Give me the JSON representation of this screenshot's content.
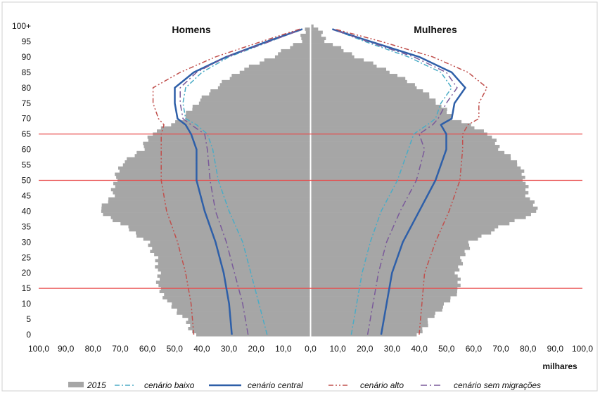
{
  "chart_data": {
    "type": "area",
    "y_tick_labels": [
      "0",
      "5",
      "10",
      "15",
      "20",
      "25",
      "30",
      "35",
      "40",
      "45",
      "50",
      "55",
      "60",
      "65",
      "70",
      "75",
      "80",
      "85",
      "90",
      "95",
      "100+"
    ],
    "x_tick_labels": [
      "100,0",
      "90,0",
      "80,0",
      "70,0",
      "60,0",
      "50,0",
      "40,0",
      "30,0",
      "20,0",
      "10,0",
      "0,0",
      "10,0",
      "20,0",
      "30,0",
      "40,0",
      "50,0",
      "60,0",
      "70,0",
      "80,0",
      "90,0",
      "100,0"
    ],
    "xlim": [
      0,
      100
    ],
    "ylim": [
      0,
      100
    ],
    "x_unit_label": "milhares",
    "panel_titles": {
      "left": "Homens",
      "right": "Mulheres"
    },
    "reference_lines_age": [
      15,
      50,
      65
    ],
    "colors": {
      "bars": "#a6a6a6",
      "baixo": "#4bacc6",
      "central": "#2e5fa8",
      "alto": "#c0504d",
      "sem": "#7a5a9a",
      "refline": "#e84a4a",
      "axis": "#ffffff"
    },
    "population_2015": {
      "ages": [
        0,
        5,
        10,
        15,
        20,
        25,
        30,
        35,
        40,
        45,
        50,
        55,
        60,
        65,
        70,
        75,
        80,
        85,
        90,
        95,
        100
      ],
      "male": [
        43,
        46,
        52,
        56,
        56,
        57,
        60,
        68,
        78,
        73,
        72,
        70,
        62,
        59,
        47,
        42,
        35,
        27,
        14,
        4,
        1
      ],
      "female": [
        40,
        44,
        50,
        55,
        54,
        56,
        59,
        70,
        84,
        80,
        79,
        77,
        70,
        66,
        53,
        47,
        40,
        30,
        17,
        6,
        2
      ]
    },
    "series": [
      {
        "name": "cenário baixo",
        "ages": [
          0,
          10,
          20,
          30,
          40,
          50,
          60,
          65,
          68,
          70,
          75,
          80,
          85,
          90,
          95,
          99
        ],
        "male": [
          16,
          19,
          22,
          25,
          30,
          34,
          36,
          38,
          42,
          46,
          47,
          46,
          40,
          30,
          15,
          3
        ],
        "female": [
          15,
          17,
          19,
          22,
          26,
          32,
          36,
          38,
          43,
          46,
          48,
          52,
          48,
          36,
          20,
          8
        ]
      },
      {
        "name": "cenário central",
        "ages": [
          0,
          10,
          20,
          30,
          40,
          50,
          60,
          65,
          68,
          70,
          75,
          80,
          85,
          90,
          95,
          99
        ],
        "male": [
          29,
          30,
          32,
          35,
          39,
          42,
          42,
          44,
          46,
          49,
          50,
          50,
          43,
          31,
          16,
          3
        ],
        "female": [
          26,
          28,
          30,
          34,
          40,
          46,
          50,
          50,
          48,
          52,
          53,
          57,
          52,
          40,
          22,
          8
        ]
      },
      {
        "name": "cenário alto",
        "ages": [
          0,
          10,
          20,
          30,
          40,
          50,
          60,
          65,
          68,
          70,
          75,
          80,
          85,
          90,
          95,
          99
        ],
        "male": [
          43,
          44,
          46,
          49,
          53,
          55,
          55,
          55,
          54,
          56,
          58,
          58,
          48,
          35,
          18,
          4
        ],
        "female": [
          40,
          41,
          42,
          46,
          51,
          55,
          56,
          56,
          58,
          62,
          62,
          65,
          58,
          45,
          26,
          9
        ]
      },
      {
        "name": "cenário sem migrações",
        "ages": [
          0,
          10,
          20,
          30,
          40,
          50,
          60,
          65,
          68,
          70,
          75,
          80,
          85,
          90,
          95,
          99
        ],
        "male": [
          23,
          25,
          28,
          31,
          35,
          37,
          38,
          39,
          44,
          47,
          48,
          48,
          42,
          31,
          15,
          3
        ],
        "female": [
          21,
          23,
          25,
          28,
          33,
          39,
          42,
          40,
          45,
          47,
          50,
          54,
          50,
          38,
          21,
          8
        ]
      }
    ],
    "legend": [
      "2015",
      "cenário baixo",
      "cenário central",
      "cenário alto",
      "cenário sem migrações"
    ]
  }
}
